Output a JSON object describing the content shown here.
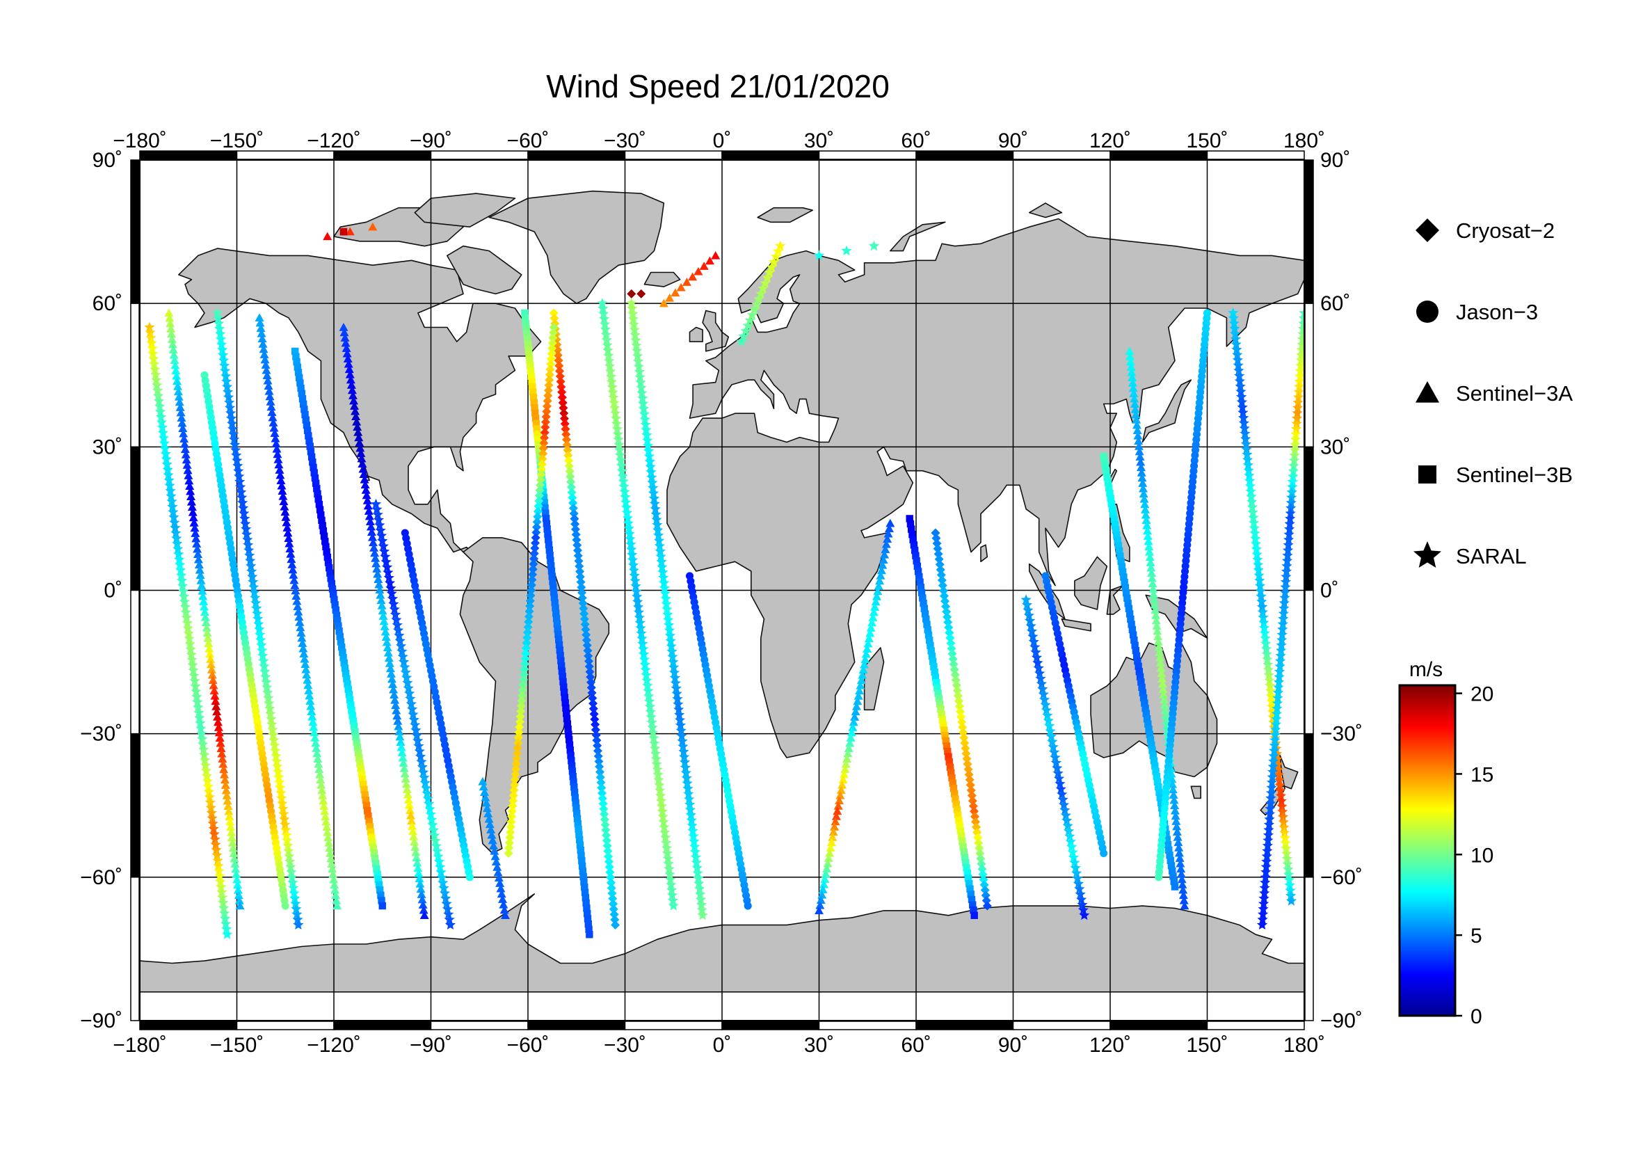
{
  "title": "Wind Speed 21/01/2020",
  "map": {
    "projection": "equirectangular",
    "lon_range": [
      -180,
      180
    ],
    "lat_range": [
      -90,
      90
    ],
    "grid_lon": [
      -150,
      -120,
      -90,
      -60,
      -30,
      0,
      30,
      60,
      90,
      120,
      150
    ],
    "grid_lat": [
      -60,
      -30,
      0,
      30,
      60
    ],
    "lon_ticks": [
      {
        "value": -180,
        "label": "−180˚"
      },
      {
        "value": -150,
        "label": "−150˚"
      },
      {
        "value": -120,
        "label": "−120˚"
      },
      {
        "value": -90,
        "label": "−90˚"
      },
      {
        "value": -60,
        "label": "−60˚"
      },
      {
        "value": -30,
        "label": "−30˚"
      },
      {
        "value": 0,
        "label": "0˚"
      },
      {
        "value": 30,
        "label": "30˚"
      },
      {
        "value": 60,
        "label": "60˚"
      },
      {
        "value": 90,
        "label": "90˚"
      },
      {
        "value": 120,
        "label": "120˚"
      },
      {
        "value": 150,
        "label": "150˚"
      },
      {
        "value": 180,
        "label": "180˚"
      }
    ],
    "lat_ticks": [
      {
        "value": 90,
        "left": "90˚",
        "right": "90˚"
      },
      {
        "value": 60,
        "left": "60˚",
        "right": "60˚"
      },
      {
        "value": 30,
        "left": "30˚",
        "right": "30˚"
      },
      {
        "value": 0,
        "left": "0˚",
        "right": "0˚"
      },
      {
        "value": -30,
        "left": "−30˚",
        "right": "−30˚"
      },
      {
        "value": -60,
        "left": "−60˚",
        "right": "−60˚"
      },
      {
        "value": -90,
        "left": "−90˚",
        "right": "−90˚"
      }
    ],
    "colors": {
      "land": "#c0c0c0",
      "ocean": "#ffffff",
      "grid": "#000000",
      "frame": "#000000"
    }
  },
  "legend": [
    {
      "marker": "diamond",
      "label": "Cryosat−2"
    },
    {
      "marker": "circle",
      "label": "Jason−3"
    },
    {
      "marker": "triangle",
      "label": "Sentinel−3A"
    },
    {
      "marker": "square",
      "label": "Sentinel−3B"
    },
    {
      "marker": "star",
      "label": "SARAL"
    }
  ],
  "colorbar": {
    "unit": "m/s",
    "min": 0,
    "max": 20.5,
    "ticks": [
      {
        "value": 20,
        "label": "20"
      },
      {
        "value": 15,
        "label": "15"
      },
      {
        "value": 10,
        "label": "10"
      },
      {
        "value": 5,
        "label": "5"
      },
      {
        "value": 0,
        "label": "0"
      }
    ],
    "colormap": [
      "#00008f",
      "#0000ff",
      "#0080ff",
      "#00ffff",
      "#80ff80",
      "#ffff00",
      "#ff8000",
      "#ff0000",
      "#800000"
    ]
  },
  "chart_data": {
    "type": "scatter",
    "title": "Wind Speed 21/01/2020",
    "xlabel": "",
    "ylabel": "",
    "xlim": [
      -180,
      180
    ],
    "ylim": [
      -90,
      90
    ],
    "value_unit": "m/s",
    "value_range": [
      0,
      20.5
    ],
    "grid": true,
    "legend_position": "right",
    "series": [
      {
        "name": "SARAL",
        "marker": "star",
        "tracks": [
          {
            "start": [
              -177,
              55
            ],
            "end": [
              -153,
              -72
            ],
            "speeds": [
              14,
              8,
              6,
              11,
              9,
              16,
              8
            ]
          },
          {
            "start": [
              -156,
              58
            ],
            "end": [
              -131,
              -70
            ],
            "speeds": [
              9,
              5,
              4,
              7,
              11,
              14,
              5
            ]
          },
          {
            "start": [
              -107,
              18
            ],
            "end": [
              -84,
              -70
            ],
            "speeds": [
              4,
              3,
              6,
              5,
              9,
              4
            ]
          },
          {
            "start": [
              -37,
              60
            ],
            "end": [
              -15,
              -66
            ],
            "speeds": [
              9,
              11,
              8,
              6,
              9,
              11,
              9
            ]
          },
          {
            "start": [
              -28,
              60
            ],
            "end": [
              -6,
              -68
            ],
            "speeds": [
              11,
              9,
              6,
              8,
              5,
              7,
              10
            ]
          },
          {
            "start": [
              18,
              72
            ],
            "end": [
              6,
              52
            ],
            "speeds": [
              13,
              9
            ]
          },
          {
            "start": [
              47,
              72
            ],
            "end": [
              30,
              70
            ],
            "speeds": [
              9,
              8
            ]
          },
          {
            "start": [
              94,
              -2
            ],
            "end": [
              112,
              -68
            ],
            "speeds": [
              6,
              4,
              7,
              4,
              8,
              3
            ]
          },
          {
            "start": [
              158,
              58
            ],
            "end": [
              176,
              -65
            ],
            "speeds": [
              7,
              4,
              9,
              6,
              13,
              17,
              6
            ]
          },
          {
            "start": [
              180,
              58
            ],
            "end": [
              167,
              -70
            ],
            "speeds": [
              9,
              15,
              4,
              6,
              7,
              4,
              3
            ]
          }
        ]
      },
      {
        "name": "Sentinel-3A",
        "marker": "triangle",
        "tracks": [
          {
            "start": [
              -171,
              58
            ],
            "end": [
              -149,
              -66
            ],
            "speeds": [
              12,
              5,
              2,
              8,
              19,
              14,
              6
            ]
          },
          {
            "start": [
              -143,
              57
            ],
            "end": [
              -119,
              -66
            ],
            "speeds": [
              6,
              4,
              2,
              5,
              7,
              12,
              9
            ]
          },
          {
            "start": [
              -117,
              55
            ],
            "end": [
              -92,
              -68
            ],
            "speeds": [
              4,
              1,
              3,
              7,
              5,
              14,
              3
            ]
          },
          {
            "start": [
              -74,
              -40
            ],
            "end": [
              -67,
              -68
            ],
            "speeds": [
              6,
              4
            ]
          },
          {
            "start": [
              -2,
              70
            ],
            "end": [
              -18,
              60
            ],
            "speeds": [
              18,
              15
            ]
          },
          {
            "start": [
              52,
              14
            ],
            "end": [
              30,
              -67
            ],
            "speeds": [
              4,
              8,
              6,
              17,
              4
            ]
          },
          {
            "start": [
              126,
              50
            ],
            "end": [
              143,
              -66
            ],
            "speeds": [
              8,
              5,
              9,
              11,
              6,
              4
            ]
          },
          {
            "start": [
              -122,
              74
            ],
            "end": [
              -108,
              76
            ],
            "speeds": [
              18,
              16
            ]
          }
        ]
      },
      {
        "name": "Sentinel-3B",
        "marker": "square",
        "tracks": [
          {
            "start": [
              -132,
              50
            ],
            "end": [
              -105,
              -66
            ],
            "speeds": [
              6,
              4,
              2,
              5,
              8,
              16,
              4
            ]
          },
          {
            "start": [
              -61,
              58
            ],
            "end": [
              -41,
              -72
            ],
            "speeds": [
              9,
              15,
              4,
              5,
              2,
              6,
              4
            ]
          },
          {
            "start": [
              58,
              15
            ],
            "end": [
              78,
              -68
            ],
            "speeds": [
              2,
              5,
              7,
              17,
              12,
              3
            ]
          },
          {
            "start": [
              118,
              28
            ],
            "end": [
              140,
              -62
            ],
            "speeds": [
              9,
              6,
              4,
              7,
              5
            ]
          },
          {
            "start": [
              -117,
              75
            ],
            "end": [
              -117,
              75
            ],
            "speeds": [
              19
            ]
          }
        ]
      },
      {
        "name": "Jason-3",
        "marker": "circle",
        "tracks": [
          {
            "start": [
              -160,
              45
            ],
            "end": [
              -135,
              -66
            ],
            "speeds": [
              9,
              7,
              6,
              12,
              15,
              10
            ]
          },
          {
            "start": [
              -98,
              12
            ],
            "end": [
              -78,
              -60
            ],
            "speeds": [
              3,
              5,
              4,
              8
            ]
          },
          {
            "start": [
              -10,
              3
            ],
            "end": [
              8,
              -66
            ],
            "speeds": [
              3,
              6,
              8,
              5
            ]
          },
          {
            "start": [
              100,
              3
            ],
            "end": [
              118,
              -55
            ],
            "speeds": [
              5,
              3,
              8,
              6
            ]
          },
          {
            "start": [
              150,
              58
            ],
            "end": [
              135,
              -60
            ],
            "speeds": [
              7,
              5,
              3,
              6,
              9
            ]
          }
        ]
      },
      {
        "name": "Cryosat-2",
        "marker": "diamond",
        "tracks": [
          {
            "start": [
              -52,
              58
            ],
            "end": [
              -33,
              -70
            ],
            "speeds": [
              13,
              19,
              5,
              6,
              3,
              9,
              6
            ]
          },
          {
            "start": [
              -52,
              55
            ],
            "end": [
              -66,
              -55
            ],
            "speeds": [
              11,
              17,
              4,
              7,
              14,
              12
            ]
          },
          {
            "start": [
              -25,
              62
            ],
            "end": [
              -28,
              62
            ],
            "speeds": [
              20
            ]
          },
          {
            "start": [
              66,
              12
            ],
            "end": [
              82,
              -66
            ],
            "speeds": [
              5,
              7,
              13,
              16,
              4
            ]
          }
        ]
      }
    ]
  }
}
